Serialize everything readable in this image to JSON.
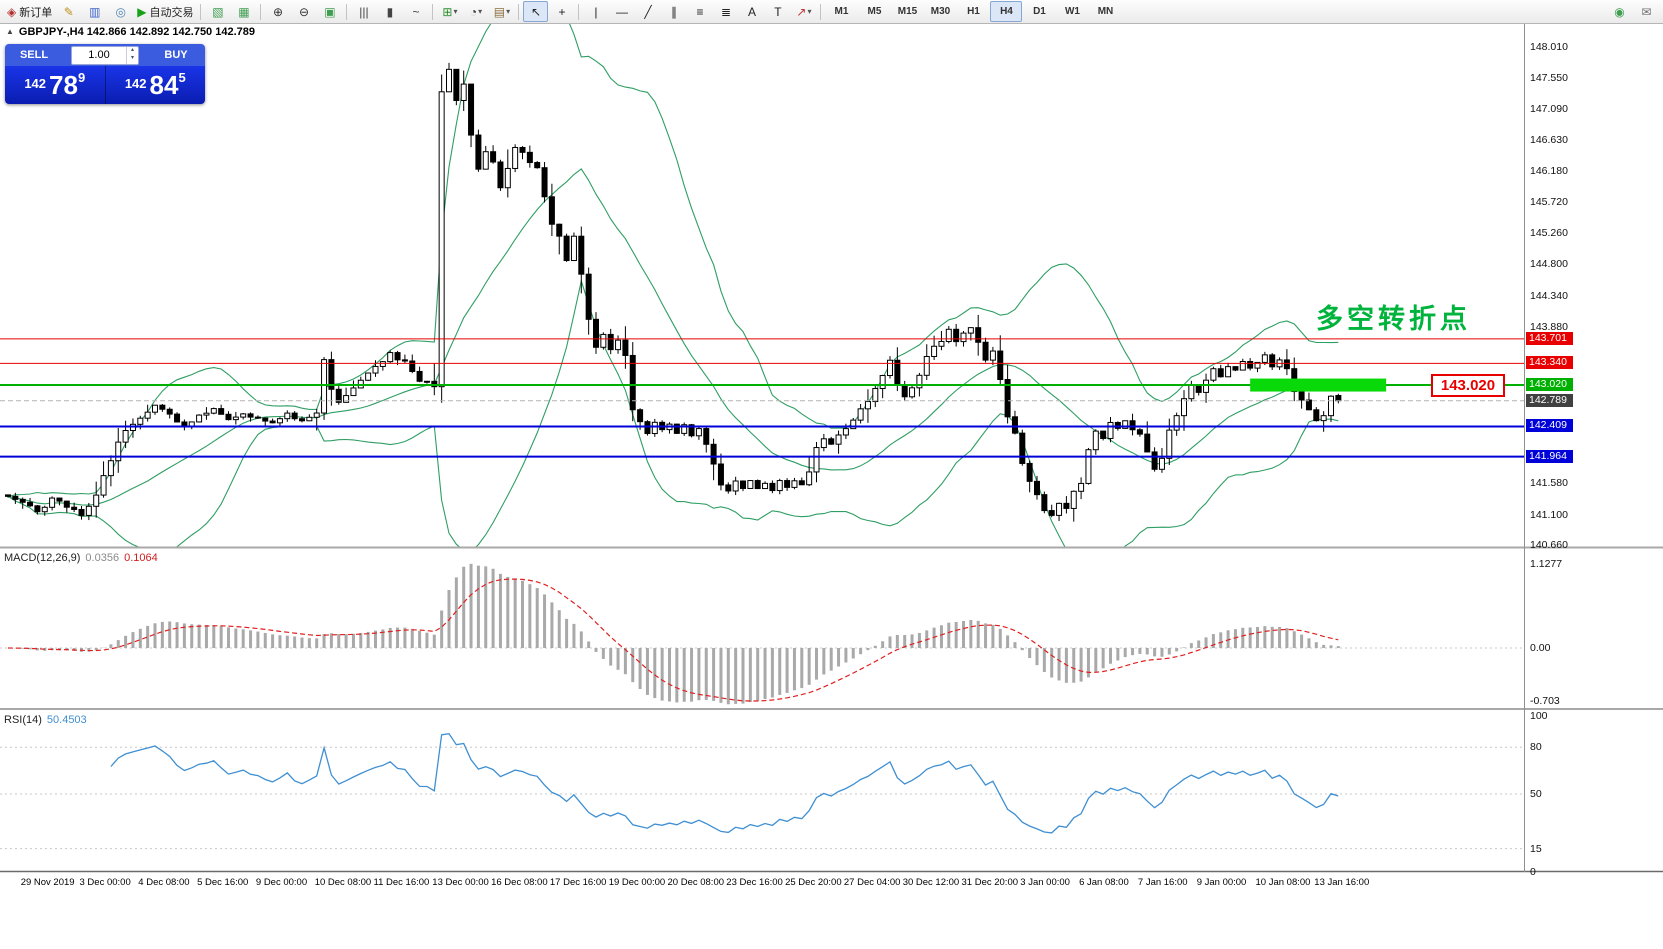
{
  "header": {
    "collapse_arrow": "▲",
    "symbol_line": "GBPJPY-,H4  142.866 142.892 142.750 142.789"
  },
  "trade": {
    "sell_label": "SELL",
    "buy_label": "BUY",
    "lot": "1.00",
    "sell_price_small": "142",
    "sell_price_big": "78",
    "sell_price_sup": "9",
    "buy_price_small": "142",
    "buy_price_big": "84",
    "buy_price_sup": "5"
  },
  "panels": {
    "macd_title": "MACD(12,26,9)",
    "rsi_title": "RSI(14)"
  },
  "annotations": {
    "turning_point": "多空转折点",
    "price_tag": "143.020"
  },
  "toolbar": {
    "groups": [
      {
        "name": "standard",
        "buttons": [
          {
            "name": "new-order-button",
            "label": "新订单",
            "glyph": "◈",
            "color": "#b03030"
          },
          {
            "name": "metaeditor-button",
            "glyph": "✎",
            "color": "#c09020"
          },
          {
            "name": "market-watch-button",
            "glyph": "▥",
            "color": "#3f63c8"
          },
          {
            "name": "navigator-button",
            "glyph": "◎",
            "color": "#4f86b4"
          },
          {
            "name": "autotrading-button",
            "label": "自动交易",
            "glyph": "▶",
            "color": "#18a018"
          }
        ]
      },
      {
        "name": "windows",
        "buttons": [
          {
            "name": "new-chart-button",
            "glyph": "▧",
            "color": "#3f9e4f"
          },
          {
            "name": "tile-windows-button",
            "glyph": "▦",
            "color": "#3f9e4f"
          }
        ]
      },
      {
        "name": "zoom",
        "buttons": [
          {
            "name": "zoom-in-button",
            "glyph": "⊕",
            "color": "#333333"
          },
          {
            "name": "zoom-out-button",
            "glyph": "⊖",
            "color": "#333333"
          },
          {
            "name": "auto-scroll-button",
            "glyph": "▣",
            "color": "#3f9e4f"
          }
        ]
      },
      {
        "name": "chart-type",
        "buttons": [
          {
            "name": "bar-chart-button",
            "glyph": "|||",
            "color": "#444444"
          },
          {
            "name": "candlestick-button",
            "glyph": "▮",
            "color": "#444444"
          },
          {
            "name": "line-chart-button",
            "glyph": "~",
            "color": "#444444"
          }
        ]
      },
      {
        "name": "insert",
        "buttons": [
          {
            "name": "indicators-button",
            "glyph": "⊞",
            "color": "#2d8f2d",
            "dropdown": true
          },
          {
            "name": "periods-button",
            "glyph": "◔",
            "color": "#333333",
            "dropdown": true
          },
          {
            "name": "templates-button",
            "glyph": "▤",
            "color": "#8a6d3b",
            "dropdown": true
          }
        ]
      },
      {
        "name": "cursor",
        "buttons": [
          {
            "name": "cursor-button",
            "glyph": "↖",
            "color": "#222222",
            "active": true
          },
          {
            "name": "crosshair-button",
            "glyph": "+",
            "color": "#222222"
          }
        ]
      },
      {
        "name": "line-studies",
        "buttons": [
          {
            "name": "vertical-line-button",
            "glyph": "|",
            "color": "#222222"
          },
          {
            "name": "horizontal-line-button",
            "glyph": "—",
            "color": "#222222"
          },
          {
            "name": "trendline-button",
            "glyph": "╱",
            "color": "#222222"
          },
          {
            "name": "channel-button",
            "glyph": "∥",
            "color": "#222222"
          },
          {
            "name": "fibonacci-button",
            "glyph": "≡",
            "color": "#222222"
          },
          {
            "name": "cycle-lines-button",
            "glyph": "≣",
            "color": "#222222"
          },
          {
            "name": "text-button",
            "glyph": "A",
            "color": "#222222"
          },
          {
            "name": "label-button",
            "glyph": "T",
            "color": "#222222"
          },
          {
            "name": "arrows-button",
            "glyph": "↗",
            "color": "#c03333",
            "dropdown": true
          }
        ]
      },
      {
        "name": "timeframes",
        "buttons": [
          {
            "name": "tf-m1",
            "label": "M1"
          },
          {
            "name": "tf-m5",
            "label": "M5"
          },
          {
            "name": "tf-m15",
            "label": "M15"
          },
          {
            "name": "tf-m30",
            "label": "M30"
          },
          {
            "name": "tf-h1",
            "label": "H1"
          },
          {
            "name": "tf-h4",
            "label": "H4",
            "active": true
          },
          {
            "name": "tf-d1",
            "label": "D1"
          },
          {
            "name": "tf-w1",
            "label": "W1"
          },
          {
            "name": "tf-mn",
            "label": "MN"
          }
        ]
      }
    ],
    "right_buttons": [
      {
        "name": "whats-new-button",
        "glyph": "◉",
        "color": "#3f9e4f"
      },
      {
        "name": "chat-button",
        "glyph": "✉",
        "color": "#707070"
      }
    ]
  },
  "chart_data": {
    "type": "candlestick",
    "symbol": "GBPJPY-",
    "timeframe": "H4",
    "ohlc": {
      "open": "142.866",
      "high": "142.892",
      "low": "142.750",
      "close": "142.789"
    },
    "bars_total": 182,
    "colors": {
      "bollinger": "#2f9e63",
      "rsi": "#3f8fd2",
      "macd_histogram": "#a9a9a9",
      "macd_signal": "#e02020",
      "candle_up": "#ffffff",
      "candle_down": "#000000"
    },
    "indicators": {
      "bollinger": {
        "period": 20,
        "deviation": 2
      },
      "macd": {
        "fast": 12,
        "slow": 26,
        "signal": 9,
        "value_main": "0.0356",
        "value_signal": "0.1064"
      },
      "rsi": {
        "period": 14,
        "value": "50.4503"
      }
    },
    "levels": [
      {
        "name": "resistance-line-143701",
        "price": 143.701,
        "color": "#e80000",
        "width": 1
      },
      {
        "name": "resistance-line-143340",
        "price": 143.34,
        "color": "#e80000",
        "width": 1
      },
      {
        "name": "pivot-line-143020",
        "price": 143.02,
        "color": "#00b000",
        "width": 2
      },
      {
        "name": "bid-price-line",
        "price": 142.789,
        "color": "#b4b4b4",
        "width": 1,
        "dash": "5 3"
      },
      {
        "name": "support-line-142409",
        "price": 142.409,
        "color": "#0000d8",
        "width": 2
      },
      {
        "name": "support-line-141964",
        "price": 141.964,
        "color": "#0000d8",
        "width": 2
      }
    ],
    "level_labels": [
      {
        "label": "143.701",
        "price": 143.701,
        "bg": "#e80000"
      },
      {
        "label": "143.340",
        "price": 143.34,
        "bg": "#e80000"
      },
      {
        "label": "143.020",
        "price": 143.02,
        "bg": "#00b000"
      },
      {
        "label": "142.789",
        "price": 142.789,
        "bg": "#404040"
      },
      {
        "label": "142.409",
        "price": 142.409,
        "bg": "#0000d8"
      },
      {
        "label": "141.964",
        "price": 141.964,
        "bg": "#0000d8"
      }
    ],
    "highlight_zone": {
      "bar_start": 169,
      "bar_end": 187.5,
      "price": 143.02,
      "thickness": 13,
      "color": "#09d909"
    },
    "y_ticks": [
      {
        "label": "148.010",
        "v": 148.01
      },
      {
        "label": "147.550",
        "v": 147.55
      },
      {
        "label": "147.090",
        "v": 147.09
      },
      {
        "label": "146.630",
        "v": 146.63
      },
      {
        "label": "146.180",
        "v": 146.18
      },
      {
        "label": "145.720",
        "v": 145.72
      },
      {
        "label": "145.260",
        "v": 145.26
      },
      {
        "label": "144.800",
        "v": 144.8
      },
      {
        "label": "144.340",
        "v": 144.34
      },
      {
        "label": "143.880",
        "v": 143.88
      },
      {
        "label": "143.420",
        "v": 143.42
      },
      {
        "label": "142.960",
        "v": 142.96
      },
      {
        "label": "142.500",
        "v": 142.5
      },
      {
        "label": "142.040",
        "v": 142.04
      },
      {
        "label": "141.580",
        "v": 141.58
      },
      {
        "label": "141.100",
        "v": 141.1
      },
      {
        "label": "140.660",
        "v": 140.66
      }
    ],
    "macd_ticks": [
      {
        "label": "1.1277",
        "v": 1.1277
      },
      {
        "label": "0.00",
        "v": 0
      },
      {
        "label": "-0.703",
        "v": -0.703
      }
    ],
    "rsi_ticks": [
      {
        "label": "100",
        "v": 100
      },
      {
        "label": "80",
        "v": 80
      },
      {
        "label": "50",
        "v": 50
      },
      {
        "label": "15",
        "v": 15
      },
      {
        "label": "0",
        "v": 0
      }
    ],
    "rsi_levels": [
      80,
      50,
      15
    ],
    "time_label_start_bar": 2,
    "time_label_step": 8,
    "time_labels": [
      "29 Nov 2019",
      "3 Dec 00:00",
      "4 Dec 08:00",
      "5 Dec 16:00",
      "9 Dec 00:00",
      "10 Dec 08:00",
      "11 Dec 16:00",
      "13 Dec 00:00",
      "16 Dec 08:00",
      "17 Dec 16:00",
      "19 Dec 00:00",
      "20 Dec 08:00",
      "23 Dec 16:00",
      "25 Dec 20:00",
      "27 Dec 04:00",
      "30 Dec 12:00",
      "31 Dec 20:00",
      "3 Jan 00:00",
      "6 Jan 08:00",
      "7 Jan 16:00",
      "9 Jan 00:00",
      "10 Jan 08:00",
      "13 Jan 16:00"
    ],
    "price_path": [
      [
        0,
        141.4
      ],
      [
        2,
        141.28
      ],
      [
        4,
        141.15
      ],
      [
        6,
        141.35
      ],
      [
        8,
        141.22
      ],
      [
        10,
        141.1
      ],
      [
        12,
        141.45
      ],
      [
        14,
        141.95
      ],
      [
        16,
        142.4
      ],
      [
        18,
        142.55
      ],
      [
        20,
        142.72
      ],
      [
        22,
        142.6
      ],
      [
        24,
        142.42
      ],
      [
        26,
        142.55
      ],
      [
        28,
        142.66
      ],
      [
        30,
        142.5
      ],
      [
        32,
        142.6
      ],
      [
        34,
        142.52
      ],
      [
        36,
        142.46
      ],
      [
        38,
        142.6
      ],
      [
        40,
        142.5
      ],
      [
        42,
        142.62
      ],
      [
        43,
        143.35
      ],
      [
        44,
        142.95
      ],
      [
        45,
        142.76
      ],
      [
        46,
        142.9
      ],
      [
        48,
        143.1
      ],
      [
        50,
        143.3
      ],
      [
        52,
        143.5
      ],
      [
        54,
        143.35
      ],
      [
        56,
        143.1
      ],
      [
        58,
        143.0
      ],
      [
        59,
        147.35
      ],
      [
        60,
        147.65
      ],
      [
        61,
        147.2
      ],
      [
        62,
        147.4
      ],
      [
        63,
        146.7
      ],
      [
        64,
        146.2
      ],
      [
        65,
        146.45
      ],
      [
        66,
        146.3
      ],
      [
        67,
        145.92
      ],
      [
        68,
        146.25
      ],
      [
        69,
        146.5
      ],
      [
        70,
        146.42
      ],
      [
        72,
        146.2
      ],
      [
        73,
        145.85
      ],
      [
        74,
        145.45
      ],
      [
        75,
        145.2
      ],
      [
        76,
        144.85
      ],
      [
        77,
        145.2
      ],
      [
        78,
        144.6
      ],
      [
        79,
        144.0
      ],
      [
        80,
        143.6
      ],
      [
        81,
        143.75
      ],
      [
        82,
        143.56
      ],
      [
        83,
        143.66
      ],
      [
        84,
        143.5
      ],
      [
        85,
        142.7
      ],
      [
        86,
        142.45
      ],
      [
        87,
        142.32
      ],
      [
        88,
        142.46
      ],
      [
        89,
        142.35
      ],
      [
        90,
        142.46
      ],
      [
        91,
        142.3
      ],
      [
        92,
        142.45
      ],
      [
        93,
        142.26
      ],
      [
        94,
        142.4
      ],
      [
        95,
        142.2
      ],
      [
        96,
        141.9
      ],
      [
        97,
        141.6
      ],
      [
        98,
        141.45
      ],
      [
        99,
        141.6
      ],
      [
        100,
        141.5
      ],
      [
        101,
        141.62
      ],
      [
        102,
        141.48
      ],
      [
        103,
        141.58
      ],
      [
        104,
        141.46
      ],
      [
        105,
        141.6
      ],
      [
        106,
        141.52
      ],
      [
        107,
        141.62
      ],
      [
        108,
        141.55
      ],
      [
        109,
        141.76
      ],
      [
        110,
        142.05
      ],
      [
        111,
        142.25
      ],
      [
        112,
        142.15
      ],
      [
        113,
        142.3
      ],
      [
        114,
        142.4
      ],
      [
        115,
        142.5
      ],
      [
        116,
        142.62
      ],
      [
        117,
        142.82
      ],
      [
        118,
        143.02
      ],
      [
        119,
        143.22
      ],
      [
        120,
        143.4
      ],
      [
        121,
        143.05
      ],
      [
        122,
        142.85
      ],
      [
        123,
        143.0
      ],
      [
        124,
        143.2
      ],
      [
        125,
        143.4
      ],
      [
        126,
        143.56
      ],
      [
        127,
        143.7
      ],
      [
        128,
        143.85
      ],
      [
        129,
        143.65
      ],
      [
        130,
        143.76
      ],
      [
        131,
        143.85
      ],
      [
        132,
        143.6
      ],
      [
        133,
        143.4
      ],
      [
        134,
        143.55
      ],
      [
        135,
        143.1
      ],
      [
        136,
        142.6
      ],
      [
        137,
        142.3
      ],
      [
        138,
        141.9
      ],
      [
        139,
        141.6
      ],
      [
        140,
        141.35
      ],
      [
        141,
        141.2
      ],
      [
        142,
        141.1
      ],
      [
        143,
        141.3
      ],
      [
        144,
        141.2
      ],
      [
        145,
        141.45
      ],
      [
        146,
        141.6
      ],
      [
        147,
        142.1
      ],
      [
        148,
        142.35
      ],
      [
        149,
        142.25
      ],
      [
        150,
        142.45
      ],
      [
        151,
        142.36
      ],
      [
        152,
        142.5
      ],
      [
        153,
        142.4
      ],
      [
        154,
        142.3
      ],
      [
        155,
        142.05
      ],
      [
        156,
        141.75
      ],
      [
        157,
        141.95
      ],
      [
        158,
        142.3
      ],
      [
        159,
        142.55
      ],
      [
        160,
        142.8
      ],
      [
        161,
        143.0
      ],
      [
        162,
        142.9
      ],
      [
        163,
        143.1
      ],
      [
        164,
        143.25
      ],
      [
        165,
        143.15
      ],
      [
        166,
        143.3
      ],
      [
        167,
        143.22
      ],
      [
        168,
        143.35
      ],
      [
        169,
        143.28
      ],
      [
        170,
        143.36
      ],
      [
        171,
        143.45
      ],
      [
        172,
        143.3
      ],
      [
        173,
        143.4
      ],
      [
        174,
        143.25
      ],
      [
        175,
        142.95
      ],
      [
        176,
        142.8
      ],
      [
        177,
        142.6
      ],
      [
        178,
        142.48
      ],
      [
        179,
        142.62
      ],
      [
        180,
        142.86
      ],
      [
        181,
        142.79
      ]
    ]
  }
}
